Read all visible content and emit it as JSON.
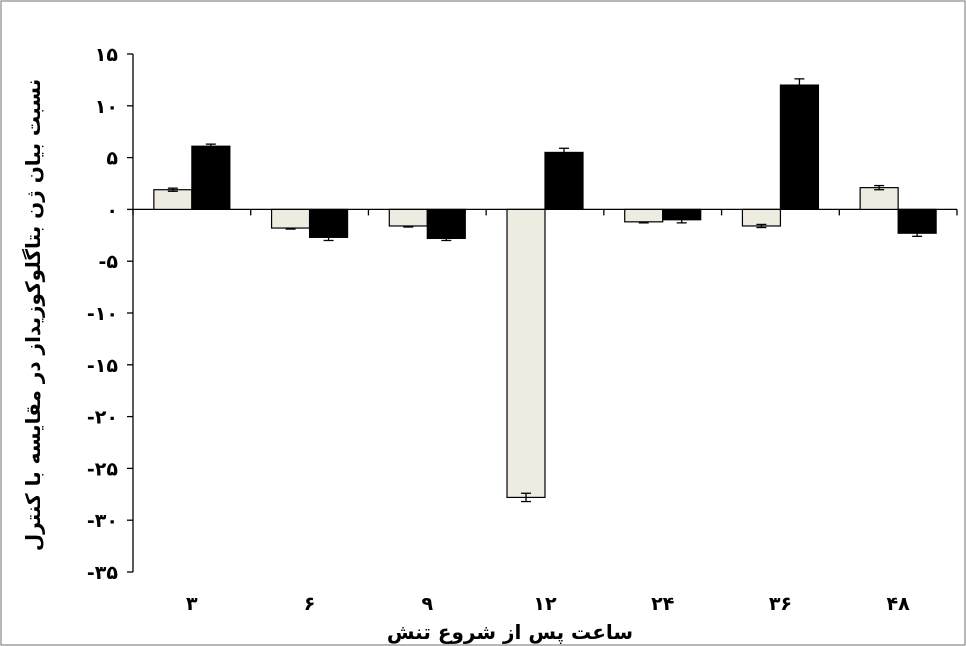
{
  "chart_data": {
    "type": "bar",
    "title": "",
    "xlabel": "ساعت پس از شروع تنش",
    "ylabel": "نسبت بیان ژن بتاگلوکوزیداز در مقایسه با کنترل",
    "categories": [
      "۳",
      "۶",
      "۹",
      "۱۲",
      "۲۴",
      "۳۶",
      "۴۸"
    ],
    "series": [
      {
        "values": [
          1.9,
          -1.8,
          -1.6,
          -27.8,
          -1.2,
          -1.6,
          2.1
        ],
        "errors": [
          0.15,
          0.1,
          0.1,
          0.4,
          0.1,
          0.15,
          0.2
        ],
        "color": "#eeece1"
      },
      {
        "values": [
          6.1,
          -2.7,
          -2.8,
          5.5,
          -1.0,
          12.0,
          -2.3
        ],
        "errors": [
          0.2,
          0.3,
          0.2,
          0.4,
          0.3,
          0.6,
          0.3
        ],
        "color": "#000000"
      }
    ],
    "yticks": [
      15,
      10,
      5,
      0,
      -5,
      -10,
      -15,
      -20,
      -25,
      -30,
      -35
    ],
    "ytick_labels": [
      "۱۵",
      "۱۰",
      "۵",
      "۰",
      "-۵",
      "-۱۰",
      "-۱۵",
      "-۲۰",
      "-۲۵",
      "-۳۰",
      "-۳۵"
    ],
    "ylim": [
      -35,
      15
    ],
    "grid": false,
    "legend": "none"
  }
}
